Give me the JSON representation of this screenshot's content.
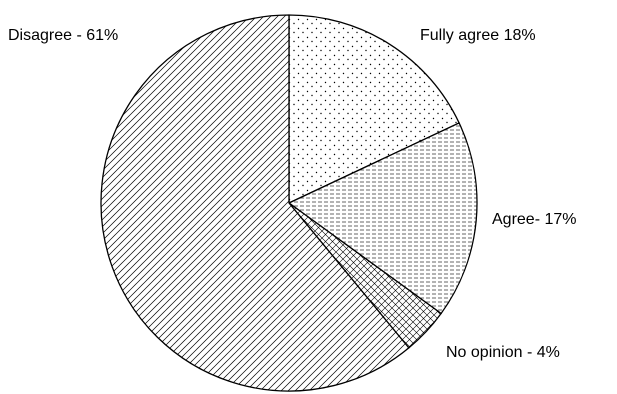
{
  "chart_data": {
    "type": "pie",
    "title": "",
    "slices": [
      {
        "label": "Fully agree 18%",
        "category": "Fully agree",
        "value": 18,
        "pattern": "dots"
      },
      {
        "label": "Agree- 17%",
        "category": "Agree",
        "value": 17,
        "pattern": "dashes"
      },
      {
        "label": "No opinion - 4%",
        "category": "No opinion",
        "value": 4,
        "pattern": "crosshatch"
      },
      {
        "label": "Disagree - 61%",
        "category": "Disagree",
        "value": 61,
        "pattern": "diagonal-hatch"
      }
    ],
    "start_angle": "12 o'clock, clockwise",
    "legend": "none",
    "colors": {
      "stroke": "#000000",
      "background": "#ffffff"
    }
  }
}
